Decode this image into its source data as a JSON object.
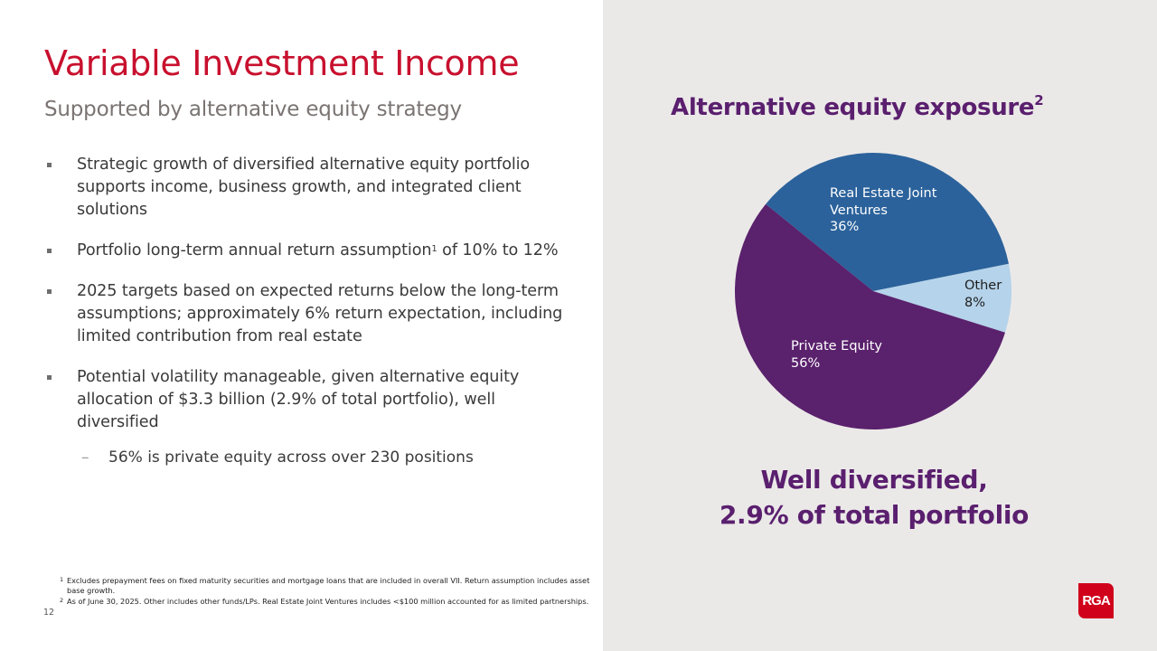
{
  "slide": {
    "title": "Variable Investment Income",
    "subtitle": "Supported by alternative equity strategy",
    "page_number": "12"
  },
  "bullets": [
    {
      "text": "Strategic growth of diversified alternative equity portfolio supports income, business growth, and integrated client solutions"
    },
    {
      "text_before": "Portfolio long-term annual return assumption",
      "sup": "1",
      "text_after": " of 10% to 12%"
    },
    {
      "text": "2025 targets based on expected returns below the long-term assumptions; approximately 6% return expectation, including limited contribution from real estate"
    },
    {
      "text": "Potential volatility manageable, given alternative equity allocation of $3.3 billion (2.9% of total portfolio), well diversified"
    }
  ],
  "sub_bullets": [
    {
      "marker": "–",
      "text": "56% is private equity across over 230 positions"
    }
  ],
  "footnotes": [
    {
      "num": "1",
      "text": "Excludes prepayment fees on fixed maturity securities and mortgage loans that are included in overall VII. Return assumption includes asset base growth."
    },
    {
      "num": "2",
      "text": "As of June 30, 2025. Other includes other funds/LPs. Real Estate Joint Ventures includes <$100 million accounted for as limited partnerships."
    }
  ],
  "chart_header": {
    "title": "Alternative equity exposure",
    "sup": "2"
  },
  "chart_data": {
    "type": "pie",
    "title": "Alternative equity exposure",
    "categories": [
      "Real Estate Joint Ventures",
      "Other",
      "Private Equity"
    ],
    "values": [
      36,
      8,
      56
    ],
    "unit": "%",
    "colors": [
      "#2b629b",
      "#b5d3ea",
      "#5a216d"
    ],
    "labels": [
      {
        "line1": "Real Estate Joint",
        "line2": "Ventures",
        "value": "36%"
      },
      {
        "line1": "Other",
        "value": "8%"
      },
      {
        "line1": "Private Equity",
        "value": "56%"
      }
    ],
    "legend": "none (data labels inside slices)"
  },
  "tagline": {
    "line1": "Well diversified,",
    "line2": "2.9% of total portfolio"
  },
  "logo": {
    "text": "RGA",
    "color": "#d0021b"
  },
  "colors": {
    "title_red": "#c8102e",
    "purple": "#5a1f6e",
    "panel_bg": "#ebe9e8"
  }
}
